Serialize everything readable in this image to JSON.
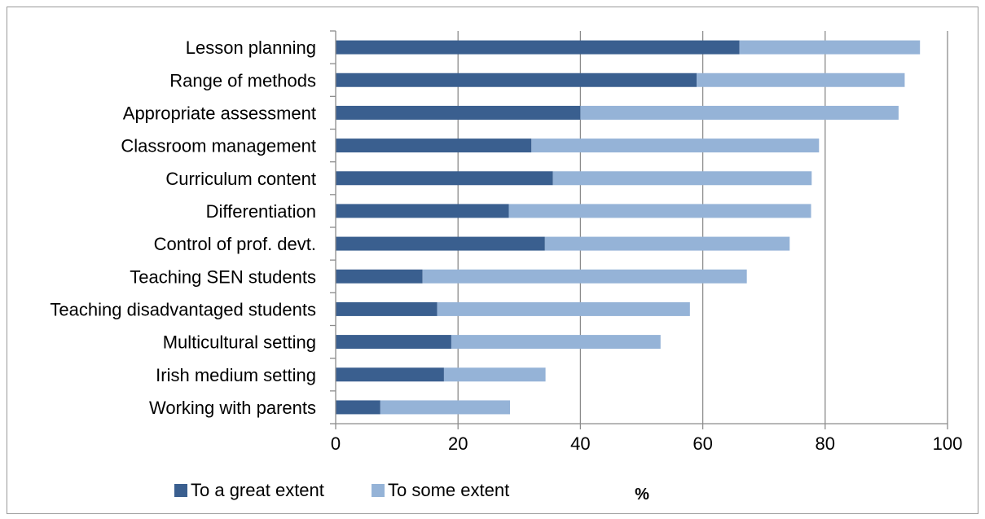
{
  "chart_data": {
    "type": "bar",
    "orientation": "horizontal",
    "stacked": true,
    "categories": [
      "Lesson planning",
      "Range of methods",
      "Appropriate assessment",
      "Classroom management",
      "Curriculum content",
      "Differentiation",
      "Control of prof. devt.",
      "Teaching SEN students",
      "Teaching disadvantaged students",
      "Multicultural setting",
      "Irish medium setting",
      "Working with parents"
    ],
    "series": [
      {
        "name": "To a great extent",
        "color": "#3a5f8f",
        "values": [
          66,
          59,
          40,
          32,
          35.5,
          28.3,
          34.2,
          14.2,
          16.6,
          18.9,
          17.7,
          7.3
        ]
      },
      {
        "name": "To some extent",
        "color": "#95b3d7",
        "values": [
          29.5,
          34,
          52,
          47,
          42.3,
          49.4,
          40,
          53,
          41.3,
          34.2,
          16.6,
          21.2
        ]
      }
    ],
    "xlabel": "%",
    "xlim": [
      0,
      100
    ],
    "xticks": [
      "0",
      "20",
      "40",
      "60",
      "80",
      "100"
    ],
    "grid": true,
    "legend_position": "bottom-left"
  }
}
